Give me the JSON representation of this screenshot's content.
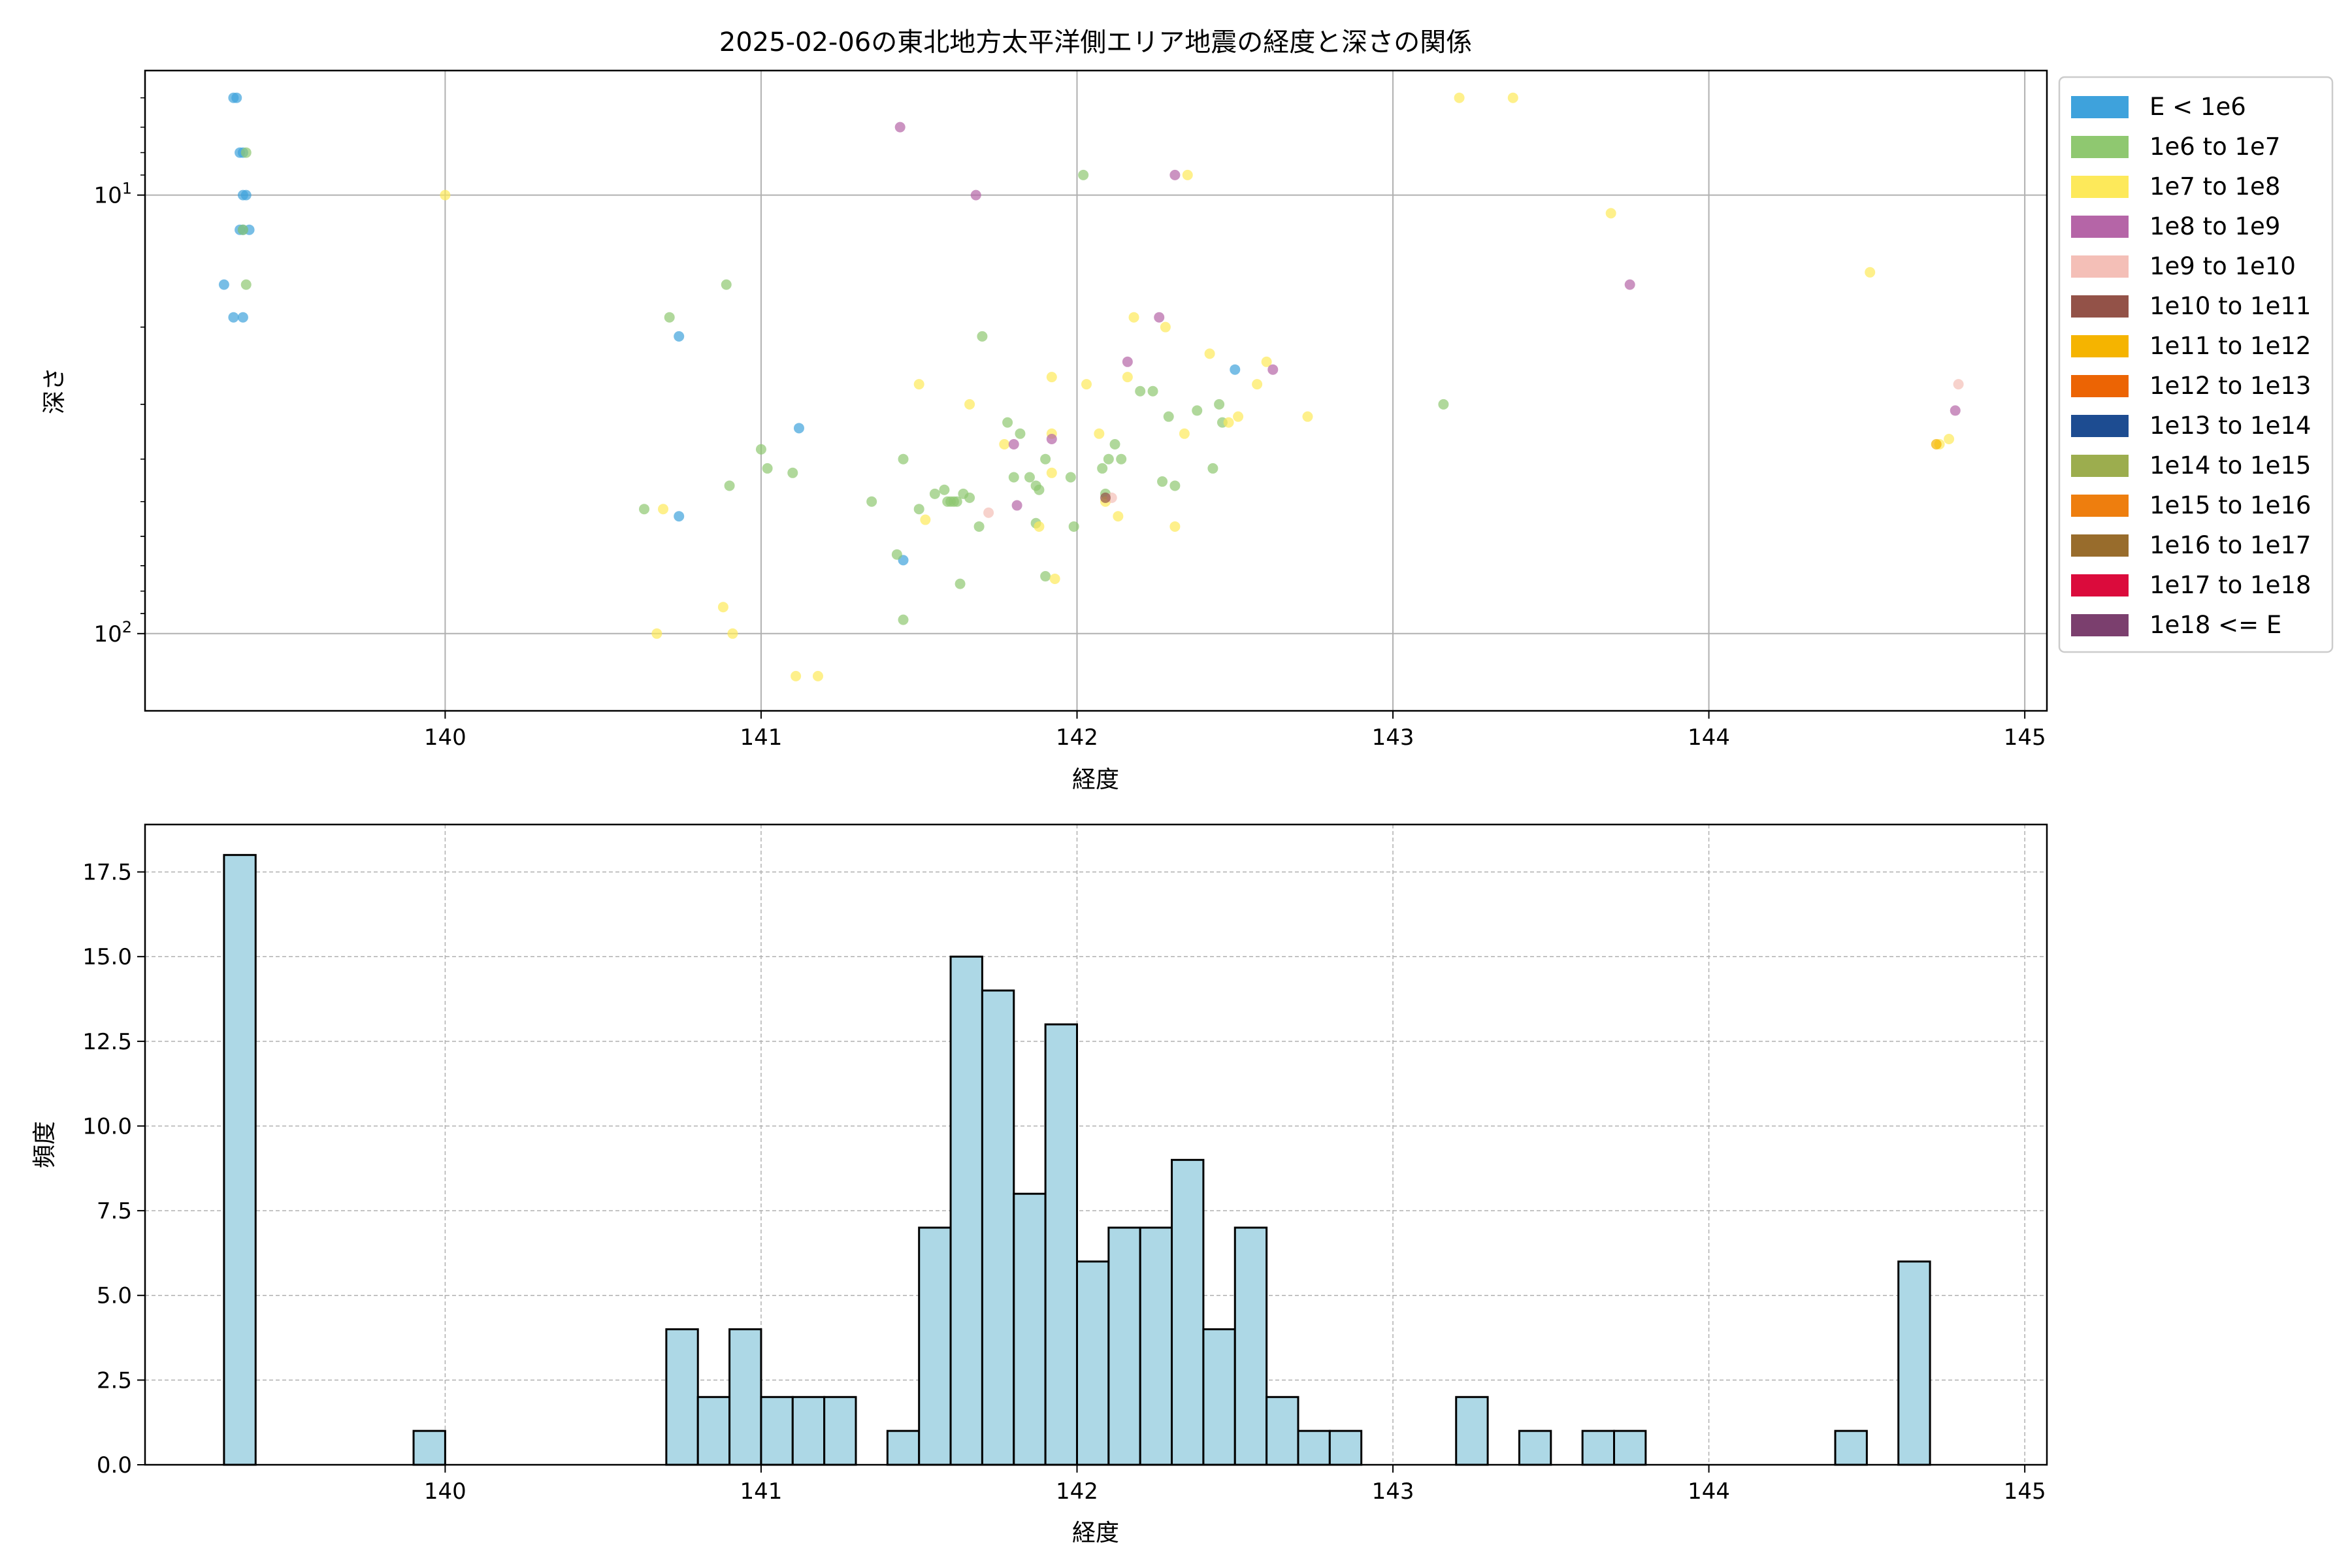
{
  "figure": {
    "title": "2025-02-06の東北地方太平洋側エリア地震の経度と深さの関係"
  },
  "chart_data": [
    {
      "type": "scatter",
      "title": "2025-02-06の東北地方太平洋側エリア地震の経度と深さの関係",
      "xlabel": "経度",
      "ylabel": "深さ",
      "xlim": [
        139.05,
        145.07
      ],
      "ylim": [
        150,
        5.2
      ],
      "y_scale": "log",
      "y_inverted": true,
      "grid": true,
      "legend_position": "outside-right",
      "x_ticks": [
        {
          "value": 140,
          "label": "140"
        },
        {
          "value": 141,
          "label": "141"
        },
        {
          "value": 142,
          "label": "142"
        },
        {
          "value": 143,
          "label": "143"
        },
        {
          "value": 144,
          "label": "144"
        },
        {
          "value": 145,
          "label": "145"
        }
      ],
      "y_ticks": [
        {
          "value": 10,
          "base": "10",
          "exp": "1"
        },
        {
          "value": 100,
          "base": "10",
          "exp": "2"
        }
      ],
      "legend": [
        {
          "label": "E < 1e6",
          "color": "#3ea2dc"
        },
        {
          "label": "1e6 to 1e7",
          "color": "#8fc870"
        },
        {
          "label": "1e7 to 1e8",
          "color": "#fde95a"
        },
        {
          "label": "1e8 to 1e9",
          "color": "#b565a7"
        },
        {
          "label": "1e9 to 1e10",
          "color": "#f4bfb7"
        },
        {
          "label": "1e10 to 1e11",
          "color": "#935248"
        },
        {
          "label": "1e11 to 1e12",
          "color": "#f5b400"
        },
        {
          "label": "1e12 to 1e13",
          "color": "#ec6404"
        },
        {
          "label": "1e13 to 1e14",
          "color": "#1d4c91"
        },
        {
          "label": "1e14 to 1e15",
          "color": "#9cad4e"
        },
        {
          "label": "1e15 to 1e16",
          "color": "#ee7e0e"
        },
        {
          "label": "1e16 to 1e17",
          "color": "#986c2c"
        },
        {
          "label": "1e17 to 1e18",
          "color": "#db0b3c"
        },
        {
          "label": "1e18 <= E",
          "color": "#7b3f6e"
        }
      ],
      "series": [
        {
          "name": "E < 1e6",
          "color": "#3ea2dc",
          "points": [
            [
              139.33,
              6
            ],
            [
              139.34,
              6
            ],
            [
              139.35,
              8
            ],
            [
              139.36,
              8
            ],
            [
              139.36,
              10
            ],
            [
              139.37,
              10
            ],
            [
              139.35,
              12
            ],
            [
              139.36,
              12
            ],
            [
              139.38,
              12
            ],
            [
              139.3,
              16
            ],
            [
              139.33,
              19
            ],
            [
              139.36,
              19
            ],
            [
              140.74,
              21
            ],
            [
              141.12,
              34
            ],
            [
              142.5,
              25
            ],
            [
              140.74,
              54
            ],
            [
              141.45,
              68
            ]
          ]
        },
        {
          "name": "1e6 to 1e7",
          "color": "#8fc870",
          "points": [
            [
              139.37,
              8
            ],
            [
              139.36,
              12
            ],
            [
              139.37,
              16
            ],
            [
              140.71,
              19
            ],
            [
              140.89,
              16
            ],
            [
              142.02,
              9
            ],
            [
              141.7,
              21
            ],
            [
              143.16,
              30
            ],
            [
              142.2,
              28
            ],
            [
              142.24,
              28
            ],
            [
              142.45,
              30
            ],
            [
              142.29,
              32
            ],
            [
              142.38,
              31
            ],
            [
              142.46,
              33
            ],
            [
              141.78,
              33
            ],
            [
              141.82,
              35
            ],
            [
              142.12,
              37
            ],
            [
              141.0,
              38
            ],
            [
              141.02,
              42
            ],
            [
              141.1,
              43
            ],
            [
              141.45,
              40
            ],
            [
              142.1,
              40
            ],
            [
              142.14,
              40
            ],
            [
              142.08,
              42
            ],
            [
              142.43,
              42
            ],
            [
              141.8,
              44
            ],
            [
              141.85,
              44
            ],
            [
              141.87,
              46
            ],
            [
              141.9,
              40
            ],
            [
              141.98,
              44
            ],
            [
              142.27,
              45
            ],
            [
              142.31,
              46
            ],
            [
              141.88,
              47
            ],
            [
              140.9,
              46
            ],
            [
              141.35,
              50
            ],
            [
              141.55,
              48
            ],
            [
              141.58,
              47
            ],
            [
              141.59,
              50
            ],
            [
              141.6,
              50
            ],
            [
              141.61,
              50
            ],
            [
              141.62,
              50
            ],
            [
              141.64,
              48
            ],
            [
              141.66,
              49
            ],
            [
              141.5,
              52
            ],
            [
              140.63,
              52
            ],
            [
              141.69,
              57
            ],
            [
              141.87,
              56
            ],
            [
              142.09,
              48
            ],
            [
              141.99,
              57
            ],
            [
              141.43,
              66
            ],
            [
              141.9,
              74
            ],
            [
              141.63,
              77
            ],
            [
              141.45,
              93
            ]
          ]
        },
        {
          "name": "1e7 to 1e8",
          "color": "#fde95a",
          "points": [
            [
              140.0,
              10
            ],
            [
              143.21,
              6
            ],
            [
              143.38,
              6
            ],
            [
              142.35,
              9
            ],
            [
              143.69,
              11
            ],
            [
              144.51,
              15
            ],
            [
              142.18,
              19
            ],
            [
              142.28,
              20
            ],
            [
              142.42,
              23
            ],
            [
              142.16,
              26
            ],
            [
              141.5,
              27
            ],
            [
              141.92,
              26
            ],
            [
              142.03,
              27
            ],
            [
              142.6,
              24
            ],
            [
              142.57,
              27
            ],
            [
              142.73,
              32
            ],
            [
              141.66,
              30
            ],
            [
              142.51,
              32
            ],
            [
              142.48,
              33
            ],
            [
              142.34,
              35
            ],
            [
              142.07,
              35
            ],
            [
              141.92,
              35
            ],
            [
              141.77,
              37
            ],
            [
              141.92,
              43
            ],
            [
              142.09,
              50
            ],
            [
              142.13,
              54
            ],
            [
              140.69,
              52
            ],
            [
              141.52,
              55
            ],
            [
              142.31,
              57
            ],
            [
              141.88,
              57
            ],
            [
              141.93,
              75
            ],
            [
              140.88,
              87
            ],
            [
              140.91,
              100
            ],
            [
              140.67,
              100
            ],
            [
              141.11,
              125
            ],
            [
              141.18,
              125
            ],
            [
              144.76,
              36
            ],
            [
              144.73,
              37
            ]
          ]
        },
        {
          "name": "1e8 to 1e9",
          "color": "#b565a7",
          "points": [
            [
              141.44,
              7
            ],
            [
              141.68,
              10
            ],
            [
              142.31,
              9
            ],
            [
              143.75,
              16
            ],
            [
              142.26,
              19
            ],
            [
              142.16,
              24
            ],
            [
              142.62,
              25
            ],
            [
              141.8,
              37
            ],
            [
              141.92,
              36
            ],
            [
              141.81,
              51
            ],
            [
              144.78,
              31
            ]
          ]
        },
        {
          "name": "1e9 to 1e10",
          "color": "#f4bfb7",
          "points": [
            [
              144.79,
              27
            ],
            [
              141.72,
              53
            ],
            [
              142.11,
              49
            ]
          ]
        },
        {
          "name": "1e10 to 1e11",
          "color": "#935248",
          "points": [
            [
              142.09,
              49
            ]
          ]
        },
        {
          "name": "1e11 to 1e12",
          "color": "#f5b400",
          "points": [
            [
              144.72,
              37
            ]
          ]
        }
      ]
    },
    {
      "type": "bar",
      "subtype": "histogram",
      "xlabel": "経度",
      "ylabel": "頻度",
      "xlim": [
        139.05,
        145.07
      ],
      "ylim": [
        0,
        18.9
      ],
      "grid": true,
      "bar_color": "#add8e6",
      "bar_edge_color": "#000000",
      "bin_start": 139.3,
      "bin_width": 0.1,
      "counts": [
        18,
        0,
        0,
        0,
        0,
        0,
        1,
        0,
        0,
        0,
        0,
        0,
        0,
        0,
        4,
        2,
        4,
        2,
        2,
        2,
        0,
        1,
        7,
        15,
        14,
        8,
        13,
        6,
        7,
        7,
        9,
        4,
        7,
        2,
        1,
        1,
        0,
        0,
        0,
        2,
        0,
        1,
        0,
        1,
        1,
        0,
        0,
        0,
        0,
        0,
        0,
        1,
        0,
        6
      ],
      "x_ticks": [
        {
          "value": 140,
          "label": "140"
        },
        {
          "value": 141,
          "label": "141"
        },
        {
          "value": 142,
          "label": "142"
        },
        {
          "value": 143,
          "label": "143"
        },
        {
          "value": 144,
          "label": "144"
        },
        {
          "value": 145,
          "label": "145"
        }
      ],
      "y_ticks": [
        {
          "value": 0,
          "label": "0.0"
        },
        {
          "value": 2.5,
          "label": "2.5"
        },
        {
          "value": 5,
          "label": "5.0"
        },
        {
          "value": 7.5,
          "label": "7.5"
        },
        {
          "value": 10,
          "label": "10.0"
        },
        {
          "value": 12.5,
          "label": "12.5"
        },
        {
          "value": 15,
          "label": "15.0"
        },
        {
          "value": 17.5,
          "label": "17.5"
        }
      ]
    }
  ]
}
